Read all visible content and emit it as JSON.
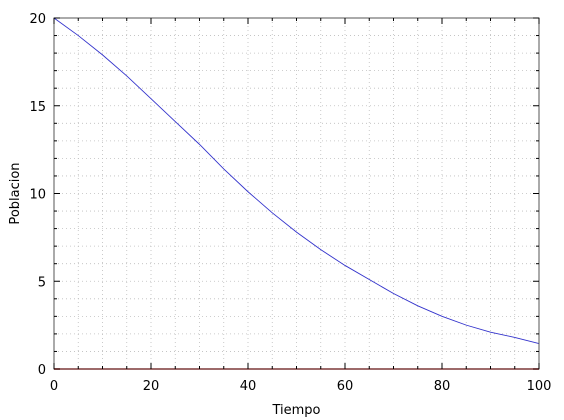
{
  "chart_data": {
    "type": "line",
    "title": "",
    "xlabel": "Tiempo",
    "ylabel": "Poblacion",
    "xlim": [
      0,
      100
    ],
    "ylim": [
      0,
      20
    ],
    "x_ticks": [
      0,
      20,
      40,
      60,
      80,
      100
    ],
    "y_ticks": [
      0,
      5,
      10,
      15,
      20
    ],
    "x_minor_step": 5,
    "y_minor_step": 1,
    "grid": true,
    "legend": "none",
    "series": [
      {
        "color": "#3333cc",
        "x": [
          0,
          5,
          10,
          15,
          20,
          25,
          30,
          35,
          40,
          45,
          50,
          55,
          60,
          65,
          70,
          75,
          80,
          85,
          90,
          95,
          100
        ],
        "y": [
          20.0,
          19.0,
          17.9,
          16.7,
          15.4,
          14.1,
          12.8,
          11.4,
          10.1,
          8.9,
          7.8,
          6.8,
          5.9,
          5.1,
          4.3,
          3.6,
          3.0,
          2.5,
          2.1,
          1.8,
          1.45
        ]
      },
      {
        "color": "#cc0000",
        "x": [
          0,
          100
        ],
        "y": [
          0,
          0
        ]
      }
    ]
  }
}
